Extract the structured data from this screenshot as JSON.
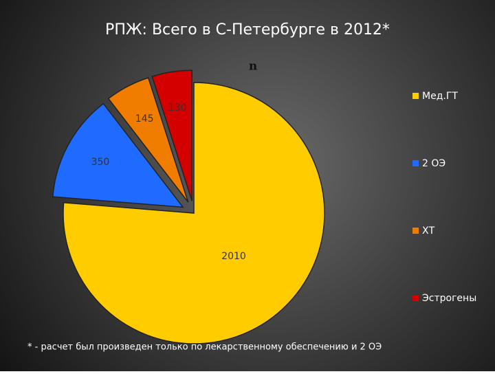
{
  "chart_data": {
    "type": "pie",
    "title": "РПЖ:  Всего в С-Петербурге в 2012*",
    "chart_title": "n",
    "categories": [
      "Мед.ГТ",
      "2 ОЭ",
      "ХТ",
      "Эстрогены"
    ],
    "values": [
      2010,
      350,
      145,
      130
    ],
    "colors": [
      "#ffcc00",
      "#1f6bff",
      "#f07d00",
      "#d40000"
    ],
    "explode": [
      false,
      true,
      true,
      true
    ],
    "legend": "right",
    "footnote": "* - расчет был произведен только по лекарственному обеспечению и 2 ОЭ"
  }
}
